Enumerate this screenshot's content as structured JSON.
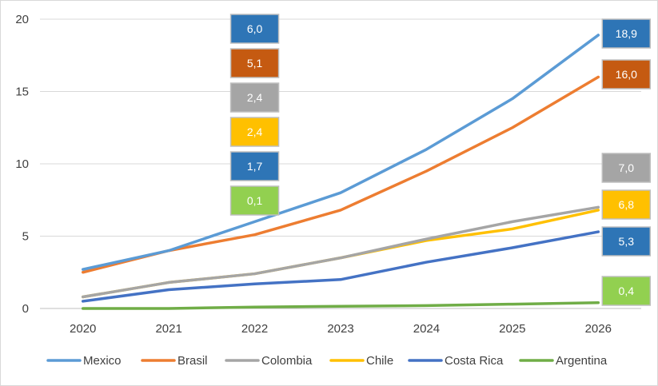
{
  "chart_data": {
    "type": "line",
    "x": [
      "2020",
      "2021",
      "2022",
      "2023",
      "2024",
      "2025",
      "2026"
    ],
    "ylim": [
      0,
      20
    ],
    "yticks": [
      "0",
      "5",
      "10",
      "15",
      "20"
    ],
    "grid": "horizontal",
    "legend_position": "bottom",
    "series": [
      {
        "name": "Mexico",
        "color": "#5b9bd5",
        "values": [
          2.7,
          4.0,
          6.0,
          8.0,
          11.0,
          14.5,
          18.9
        ]
      },
      {
        "name": "Brasil",
        "color": "#ed7d31",
        "values": [
          2.5,
          4.0,
          5.1,
          6.8,
          9.5,
          12.5,
          16.0
        ]
      },
      {
        "name": "Colombia",
        "color": "#a5a5a5",
        "values": [
          0.8,
          1.8,
          2.4,
          3.5,
          4.8,
          6.0,
          7.0
        ]
      },
      {
        "name": "Chile",
        "color": "#ffc000",
        "values": [
          0.8,
          1.8,
          2.4,
          3.5,
          4.7,
          5.5,
          6.8
        ]
      },
      {
        "name": "Costa Rica",
        "color": "#4472c4",
        "values": [
          0.5,
          1.3,
          1.7,
          2.0,
          3.2,
          4.2,
          5.3
        ]
      },
      {
        "name": "Argentina",
        "color": "#70ad47",
        "values": [
          0.0,
          0.0,
          0.1,
          0.15,
          0.2,
          0.3,
          0.4
        ]
      }
    ],
    "data_labels": [
      {
        "series": "Mexico",
        "x": "2022",
        "text": "6,0",
        "fill": "#2e75b6"
      },
      {
        "series": "Brasil",
        "x": "2022",
        "text": "5,1",
        "fill": "#c55a11"
      },
      {
        "series": "Colombia",
        "x": "2022",
        "text": "2,4",
        "fill": "#a5a5a5"
      },
      {
        "series": "Chile",
        "x": "2022",
        "text": "2,4",
        "fill": "#ffc000"
      },
      {
        "series": "Costa Rica",
        "x": "2022",
        "text": "1,7",
        "fill": "#2e75b6"
      },
      {
        "series": "Argentina",
        "x": "2022",
        "text": "0,1",
        "fill": "#92d050"
      },
      {
        "series": "Mexico",
        "x": "2026",
        "text": "18,9",
        "fill": "#2e75b6"
      },
      {
        "series": "Brasil",
        "x": "2026",
        "text": "16,0",
        "fill": "#c55a11"
      },
      {
        "series": "Colombia",
        "x": "2026",
        "text": "7,0",
        "fill": "#a5a5a5"
      },
      {
        "series": "Chile",
        "x": "2026",
        "text": "6,8",
        "fill": "#ffc000"
      },
      {
        "series": "Costa Rica",
        "x": "2026",
        "text": "5,3",
        "fill": "#2e75b6"
      },
      {
        "series": "Argentina",
        "x": "2026",
        "text": "0,4",
        "fill": "#92d050"
      }
    ]
  }
}
